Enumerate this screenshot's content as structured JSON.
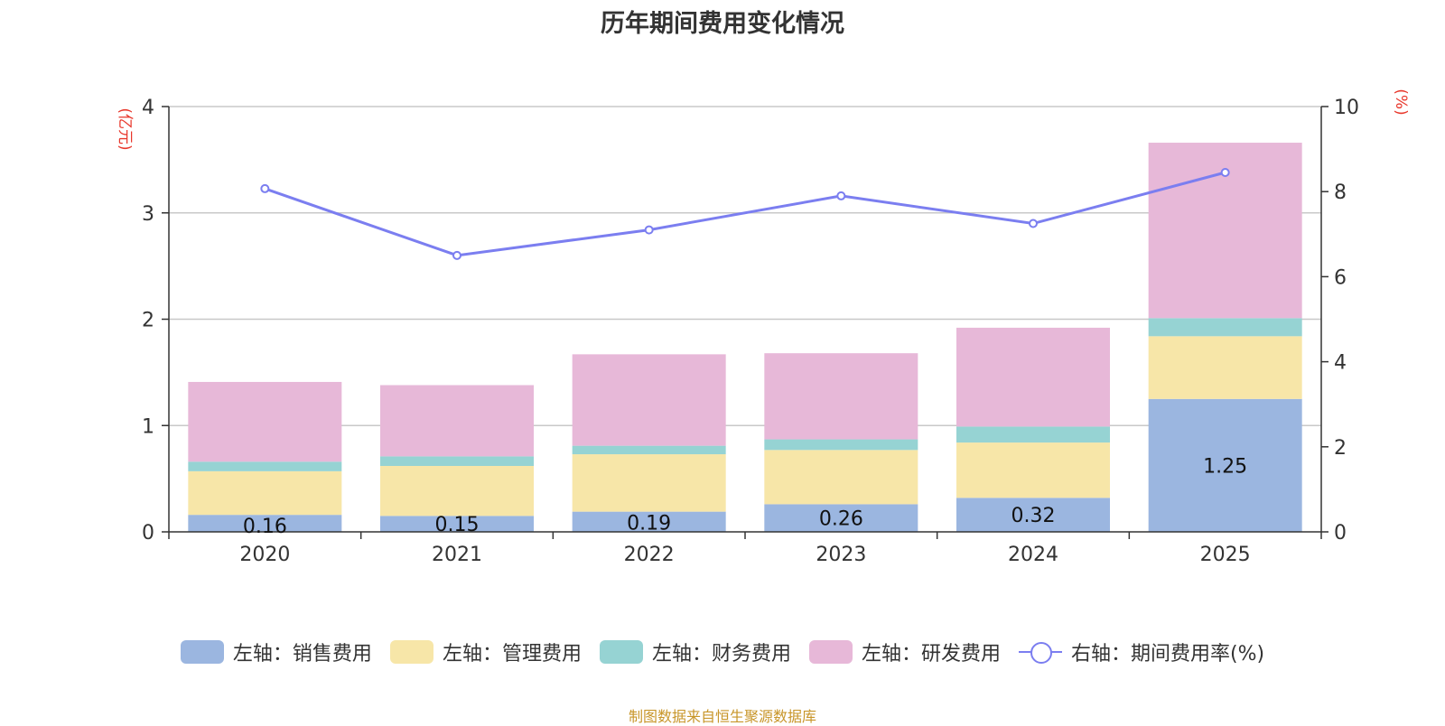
{
  "chart_data": {
    "type": "bar",
    "title": "历年期间费用变化情况",
    "categories": [
      "2020",
      "2021",
      "2022",
      "2023",
      "2024",
      "2025"
    ],
    "left_axis": {
      "label": "(亿元)",
      "ylim": [
        0,
        4
      ],
      "ticks": [
        "0",
        "1",
        "2",
        "3",
        "4"
      ]
    },
    "right_axis": {
      "label": "(%)",
      "ylim": [
        0,
        10
      ],
      "ticks": [
        "0",
        "2",
        "4",
        "6",
        "8",
        "10"
      ]
    },
    "series": [
      {
        "name": "左轴：销售费用",
        "axis": "left",
        "color": "#9bb6e0",
        "values": [
          0.16,
          0.15,
          0.19,
          0.26,
          0.32,
          1.25
        ],
        "show_labels": true
      },
      {
        "name": "左轴：管理费用",
        "axis": "left",
        "color": "#f7e6a8",
        "values": [
          0.41,
          0.47,
          0.54,
          0.51,
          0.52,
          0.59
        ]
      },
      {
        "name": "左轴：财务费用",
        "axis": "left",
        "color": "#96d3d3",
        "values": [
          0.09,
          0.09,
          0.08,
          0.1,
          0.15,
          0.17
        ]
      },
      {
        "name": "左轴：研发费用",
        "axis": "left",
        "color": "#e7b8d8",
        "values": [
          0.75,
          0.67,
          0.86,
          0.81,
          0.93,
          1.65
        ]
      }
    ],
    "line_series": {
      "name": "右轴：期间费用率(%)",
      "axis": "right",
      "color": "#7b7ef0",
      "values": [
        8.07,
        6.5,
        7.1,
        7.9,
        7.25,
        8.45
      ]
    },
    "grid": true,
    "legend_position": "bottom"
  },
  "source_note": "制图数据来自恒生聚源数据库"
}
